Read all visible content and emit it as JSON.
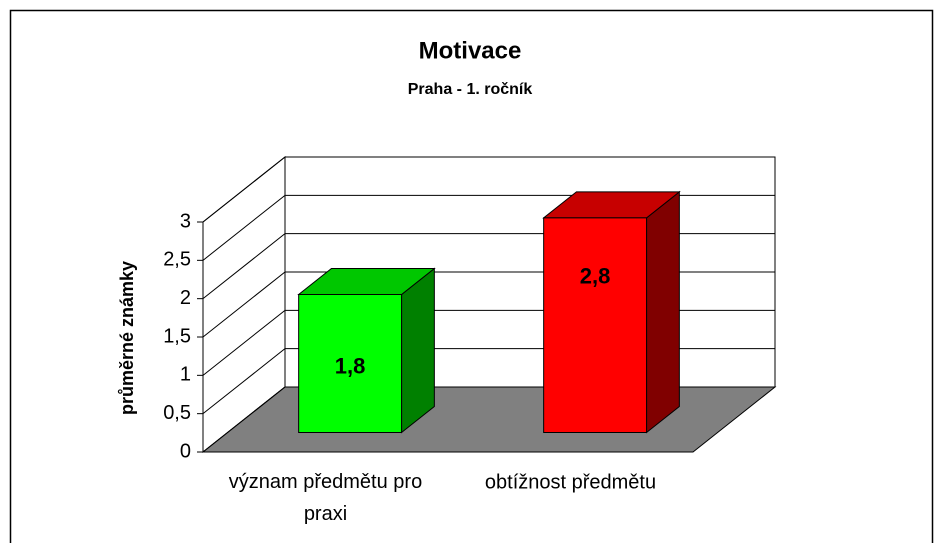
{
  "chart_data": {
    "type": "bar3d",
    "title": "Motivace",
    "subtitle": "Praha - 1. ročník",
    "y_label": "průměrné známky",
    "categories": [
      "význam předmětu pro praxi",
      "obtížnost předmětu"
    ],
    "values": [
      1.8,
      2.8
    ],
    "value_labels": [
      "1,8",
      "2,8"
    ],
    "colors": [
      "#00ff00",
      "#ff0000"
    ],
    "ylim": [
      0,
      3
    ],
    "yticks": [
      0,
      {
        "value": 0.5,
        "label": "0,5"
      },
      1,
      {
        "value": 1.5,
        "label": "1,5"
      },
      2,
      {
        "value": 2.5,
        "label": "2,5"
      },
      3
    ],
    "grid": true,
    "floor_color": "#808080"
  }
}
